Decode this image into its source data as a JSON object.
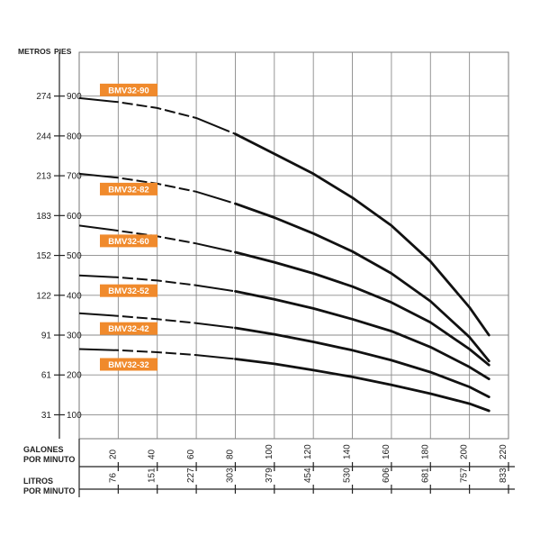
{
  "chart_data": {
    "type": "line",
    "y_axis": {
      "meters_label": "METROS",
      "feet_label": "PIES",
      "feet_ticks": [
        100,
        200,
        300,
        400,
        500,
        600,
        700,
        800,
        900
      ],
      "meters_ticks": [
        "31",
        "61",
        "91",
        "122",
        "152",
        "183",
        "213",
        "244",
        "274"
      ],
      "ylim_feet": [
        40,
        1010
      ]
    },
    "x_axis": {
      "gpm_label": [
        "GALONES",
        "POR MINUTO"
      ],
      "lpm_label": [
        "LITROS",
        "POR MINUTO"
      ],
      "gpm_ticks": [
        20,
        40,
        60,
        80,
        100,
        120,
        140,
        160,
        180,
        200,
        220
      ],
      "lpm_ticks": [
        "76",
        "151",
        "227",
        "303",
        "379",
        "454",
        "530",
        "606",
        "681",
        "757",
        "833"
      ],
      "xlim_gpm": [
        0,
        220
      ]
    },
    "grid": true,
    "label_color": "#f08a2c",
    "line_color": "#111111",
    "series": [
      {
        "name": "BMV32-90",
        "x": [
          0,
          20,
          40,
          60,
          80,
          100,
          120,
          140,
          160,
          180,
          200,
          210
        ],
        "y": [
          895,
          885,
          870,
          845,
          805,
          755,
          705,
          645,
          575,
          485,
          370,
          300
        ]
      },
      {
        "name": "BMV32-82",
        "x": [
          0,
          20,
          40,
          60,
          80,
          100,
          120,
          140,
          160,
          180,
          200,
          210
        ],
        "y": [
          705,
          695,
          680,
          660,
          630,
          595,
          555,
          510,
          455,
          385,
          295,
          235
        ]
      },
      {
        "name": "BMV32-60",
        "x": [
          0,
          20,
          40,
          60,
          80,
          100,
          120,
          140,
          160,
          180,
          200,
          210
        ],
        "y": [
          575,
          562,
          548,
          530,
          508,
          483,
          455,
          422,
          382,
          332,
          265,
          225
        ]
      },
      {
        "name": "BMV32-52",
        "x": [
          0,
          20,
          40,
          60,
          80,
          100,
          120,
          140,
          160,
          180,
          200,
          210
        ],
        "y": [
          450,
          445,
          437,
          425,
          410,
          390,
          367,
          340,
          310,
          270,
          220,
          190
        ]
      },
      {
        "name": "BMV32-42",
        "x": [
          0,
          20,
          40,
          60,
          80,
          100,
          120,
          140,
          160,
          180,
          200,
          210
        ],
        "y": [
          355,
          348,
          340,
          330,
          318,
          302,
          283,
          262,
          237,
          207,
          170,
          145
        ]
      },
      {
        "name": "BMV32-32",
        "x": [
          0,
          20,
          40,
          60,
          80,
          100,
          120,
          140,
          160,
          180,
          200,
          210
        ],
        "y": [
          265,
          262,
          257,
          250,
          240,
          228,
          212,
          195,
          175,
          153,
          128,
          110
        ]
      }
    ]
  }
}
